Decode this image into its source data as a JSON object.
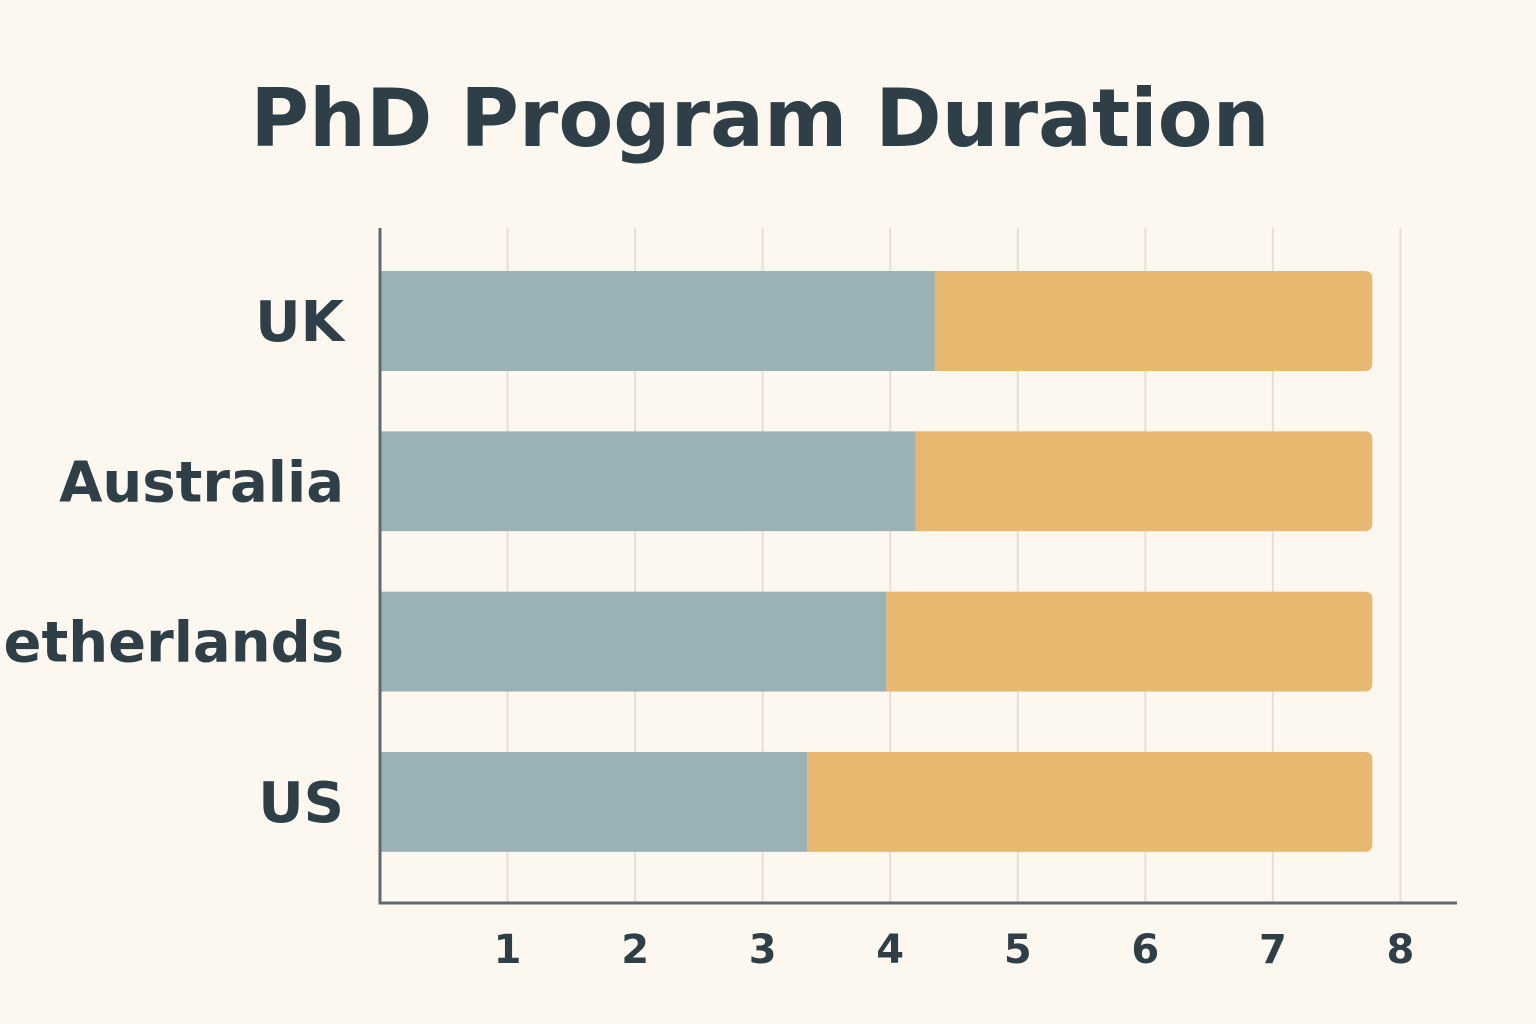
{
  "chart_data": {
    "type": "bar",
    "orientation": "horizontal",
    "stacked": true,
    "title": "PhD Program Duration",
    "xlabel": "",
    "ylabel": "",
    "categories": [
      "UK",
      "Australia",
      "Netherlands",
      "US"
    ],
    "series": [
      {
        "values": [
          4.35,
          4.2,
          3.97,
          3.35
        ],
        "color": "#9ab1b5"
      },
      {
        "values": [
          3.43,
          3.58,
          3.81,
          4.43
        ],
        "color": "#e8b870"
      }
    ],
    "x_ticks": [
      "1",
      "2",
      "3",
      "4",
      "5",
      "6",
      "7",
      "8"
    ],
    "xlim": [
      0,
      8.02
    ],
    "grid": true,
    "legend": "none"
  },
  "colors": {
    "background": "#fcf8ef",
    "text": "#2e3f47",
    "axis": "#5f6a70",
    "grid": "#e6e0d4"
  }
}
